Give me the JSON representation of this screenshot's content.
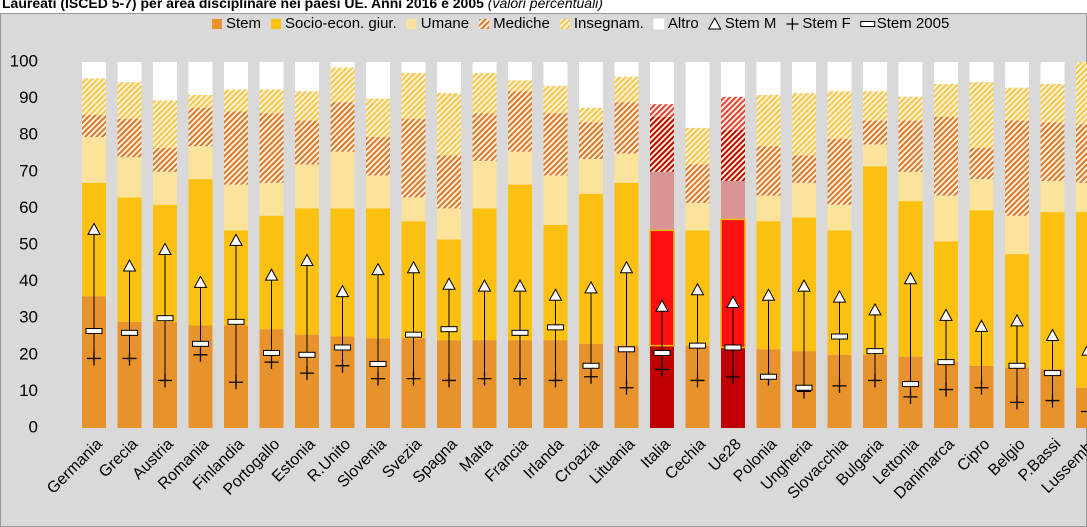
{
  "chart_data": {
    "type": "stacked_bar",
    "title": "Laureati (ISCED 5-7) per area disciplinare nei paesi UE. Anni 2016 e 2005",
    "subtitle": "(valori percentuali)",
    "categories": [
      "Germania",
      "Grecia",
      "Austria",
      "Romania",
      "Finlandia",
      "Portogallo",
      "Estonia",
      "R.Unito",
      "Slovenia",
      "Svezia",
      "Spagna",
      "Malta",
      "Francia",
      "Irlanda",
      "Croazia",
      "Lituania",
      "Italia",
      "Cechia",
      "Ue28",
      "Polonia",
      "Ungheria",
      "Slovacchia",
      "Bulgaria",
      "Lettonia",
      "Danimarca",
      "Cipro",
      "Belgio",
      "P.Bassi",
      "Lussemb."
    ],
    "highlight": [
      "Italia",
      "Ue28"
    ],
    "series": [
      {
        "name": "Stem",
        "color": "#e8922c",
        "highlight_color": "#c00000",
        "pattern": "solid",
        "values": [
          36,
          29,
          29,
          28,
          28,
          27,
          25.5,
          25,
          24.5,
          24.5,
          24,
          24,
          24,
          24,
          23,
          22.5,
          22.5,
          22.5,
          22,
          21.5,
          21,
          20,
          20,
          19.5,
          18,
          17,
          16.5,
          16,
          11
        ]
      },
      {
        "name": "Socio-econ. giur.",
        "color": "#fcc010",
        "highlight_color": "#ff1010",
        "pattern": "solid",
        "values": [
          31,
          34,
          32,
          40,
          26,
          31,
          34.5,
          35,
          35.5,
          32,
          27.5,
          36,
          42.5,
          31.5,
          41,
          44.5,
          31.5,
          31.5,
          35,
          35,
          36.5,
          34,
          51.5,
          42.5,
          33,
          42.5,
          31,
          43,
          48
        ]
      },
      {
        "name": "Umane",
        "color": "#fbe39c",
        "highlight_color": "#d99594",
        "pattern": "solid",
        "values": [
          12.5,
          11,
          9,
          9,
          12.5,
          9,
          12,
          15.5,
          9,
          6.5,
          8.5,
          13,
          9,
          13.5,
          9.5,
          8,
          16,
          7.5,
          10.5,
          7,
          9.5,
          7,
          6,
          8,
          12.5,
          8.5,
          10.5,
          8.5,
          8
        ]
      },
      {
        "name": "Mediche",
        "color": "#d9782e",
        "highlight_color": "#c00000",
        "pattern": "hatch",
        "values": [
          6,
          10.5,
          6.5,
          10.5,
          20,
          19,
          12,
          13.5,
          10.5,
          21.5,
          14.5,
          13,
          16.5,
          17,
          10,
          14,
          15,
          10.5,
          14,
          13.5,
          7.5,
          18,
          6.5,
          14,
          21.5,
          8.5,
          26,
          16,
          16
        ]
      },
      {
        "name": "Insegnam.",
        "color": "#f5c84a",
        "highlight_color": "#e04040",
        "pattern": "hatch",
        "values": [
          10,
          10,
          13,
          3.5,
          6,
          6.5,
          8,
          9.5,
          10.5,
          12.5,
          17,
          11,
          3,
          7.5,
          4,
          7,
          3.5,
          10,
          9,
          14,
          17,
          13,
          8,
          6.5,
          9,
          18,
          9,
          10.5,
          17
        ]
      },
      {
        "name": "Altro",
        "color": "#ffffff",
        "highlight_color": "#ffffff",
        "pattern": "solid",
        "values": [
          4.5,
          5.5,
          10.5,
          9,
          7.5,
          7.5,
          8,
          1.5,
          10,
          3,
          8.5,
          3,
          5,
          6.5,
          12.5,
          4,
          11.5,
          18,
          9.5,
          9,
          8.5,
          8,
          8,
          9.5,
          6,
          5.5,
          7,
          6,
          0
        ]
      }
    ],
    "markers": [
      {
        "name": "Stem M",
        "symbol": "triangle",
        "values": [
          54,
          44,
          48.5,
          39.5,
          51,
          41.5,
          45.5,
          37,
          43,
          43.5,
          39,
          38.5,
          38.5,
          36,
          38,
          43.5,
          33,
          37.5,
          34,
          36,
          38.5,
          35.5,
          32,
          40.5,
          30.5,
          27.5,
          29,
          25,
          21
        ]
      },
      {
        "name": "Stem F",
        "symbol": "plus",
        "values": [
          19,
          19,
          13,
          20,
          12.5,
          18,
          15,
          17,
          13.5,
          13.5,
          13,
          13.5,
          13.5,
          13,
          14,
          11,
          16,
          13,
          14,
          13.5,
          10,
          11.5,
          13,
          8.5,
          10.5,
          11,
          7,
          7.5,
          4.5
        ]
      },
      {
        "name": "Stem 2005",
        "symbol": "dash",
        "values": [
          26.5,
          26,
          30,
          23,
          29,
          20.5,
          20,
          22,
          17.5,
          25.5,
          27,
          null,
          26,
          27.5,
          17,
          21.5,
          20.5,
          22.5,
          22,
          14,
          11,
          25,
          21,
          12,
          18,
          null,
          17,
          15,
          null
        ]
      }
    ],
    "ylim": [
      0,
      100
    ],
    "yticks": [
      0,
      10,
      20,
      30,
      40,
      50,
      60,
      70,
      80,
      90,
      100
    ],
    "grid": false
  }
}
